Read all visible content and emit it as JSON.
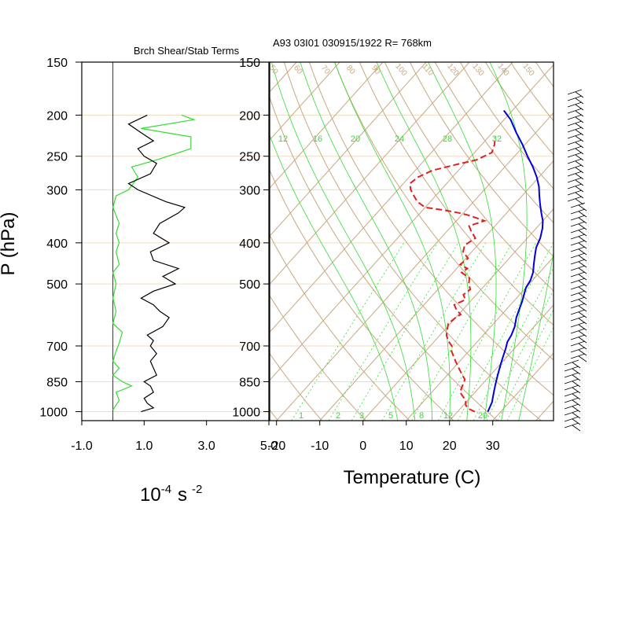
{
  "colors": {
    "isobar": "#f0dcc0",
    "adiabat": "#c8a880",
    "mixing": "#33dd33",
    "temperature": "#e02020",
    "dewpoint": "#0000dd",
    "shear": "#000000",
    "stability": "#33dd33"
  },
  "chart_data": [
    {
      "type": "line",
      "title": "Brch Shear/Stab Terms",
      "xlabel": "10",
      "xlabel_exp": "-4",
      "xlabel_unit": "s",
      "xlabel_unit_exp": "-2",
      "ylabel": "P (hPa)",
      "xlim": [
        -1.0,
        5.0
      ],
      "x_ticks": [
        "-1.0",
        "1.0",
        "3.0",
        "5.0"
      ],
      "y_ticks": [
        "150",
        "200",
        "250",
        "300",
        "400",
        "500",
        "700",
        "850",
        "1000"
      ],
      "zero_line": true,
      "series": [
        {
          "key": "shear",
          "points": [
            [
              0.9,
              1000
            ],
            [
              1.3,
              980
            ],
            [
              1.1,
              955
            ],
            [
              1.0,
              930
            ],
            [
              1.3,
              900
            ],
            [
              1.2,
              870
            ],
            [
              1.0,
              850
            ],
            [
              1.4,
              820
            ],
            [
              1.3,
              790
            ],
            [
              1.2,
              760
            ],
            [
              1.4,
              730
            ],
            [
              1.2,
              700
            ],
            [
              1.3,
              680
            ],
            [
              1.1,
              660
            ],
            [
              1.6,
              630
            ],
            [
              1.8,
              600
            ],
            [
              1.5,
              580
            ],
            [
              1.3,
              560
            ],
            [
              0.9,
              540
            ],
            [
              1.3,
              520
            ],
            [
              2.0,
              500
            ],
            [
              1.6,
              480
            ],
            [
              2.1,
              460
            ],
            [
              1.3,
              440
            ],
            [
              1.2,
              420
            ],
            [
              1.8,
              400
            ],
            [
              1.3,
              380
            ],
            [
              1.5,
              360
            ],
            [
              2.1,
              340
            ],
            [
              2.3,
              330
            ],
            [
              1.7,
              320
            ],
            [
              0.8,
              300
            ],
            [
              0.5,
              290
            ],
            [
              1.2,
              275
            ],
            [
              1.4,
              260
            ],
            [
              1.0,
              250
            ],
            [
              0.8,
              240
            ],
            [
              1.3,
              230
            ],
            [
              0.9,
              220
            ],
            [
              0.5,
              210
            ],
            [
              1.1,
              200
            ]
          ]
        },
        {
          "key": "stability",
          "points": [
            [
              0.0,
              990
            ],
            [
              0.2,
              940
            ],
            [
              0.1,
              900
            ],
            [
              0.6,
              870
            ],
            [
              0.3,
              850
            ],
            [
              0.0,
              820
            ],
            [
              0.2,
              790
            ],
            [
              0.0,
              760
            ],
            [
              0.1,
              720
            ],
            [
              0.2,
              690
            ],
            [
              0.3,
              650
            ],
            [
              0.0,
              620
            ],
            [
              0.1,
              580
            ],
            [
              0.0,
              540
            ],
            [
              0.1,
              500
            ],
            [
              0.0,
              470
            ],
            [
              0.2,
              450
            ],
            [
              0.1,
              420
            ],
            [
              0.2,
              400
            ],
            [
              0.1,
              380
            ],
            [
              0.2,
              360
            ],
            [
              0.0,
              330
            ],
            [
              0.1,
              310
            ],
            [
              0.5,
              300
            ],
            [
              0.8,
              280
            ],
            [
              0.6,
              265
            ],
            [
              1.4,
              255
            ],
            [
              2.5,
              240
            ],
            [
              2.5,
              225
            ],
            [
              0.9,
              215
            ],
            [
              2.6,
              205
            ],
            [
              2.2,
              200
            ]
          ]
        }
      ]
    },
    {
      "type": "skew-t",
      "title": "A93 03I01 030915/1922 R= 768km",
      "xlabel": "Temperature (C)",
      "ylim": [
        1000,
        150
      ],
      "x_ticks": [
        "-20",
        "-10",
        "0",
        "10",
        "20",
        "30"
      ],
      "y_ticks": [
        "150",
        "200",
        "250",
        "300",
        "400",
        "500",
        "700",
        "850",
        "1000"
      ],
      "mixing_ratio_labels_top": [
        "12",
        "16",
        "20",
        "24",
        "28",
        "32"
      ],
      "mixing_ratio_labels_bottom": [
        "1",
        "2",
        "3",
        "5",
        "8",
        "12",
        "20"
      ],
      "theta_labels": [
        "50",
        "60",
        "70",
        "80",
        "90",
        "100",
        "110",
        "120",
        "130",
        "140",
        "150"
      ],
      "series": [
        {
          "key": "temperature_profile",
          "points": [
            [
              24.0,
              1000
            ],
            [
              22.0,
              985
            ],
            [
              20.5,
              965
            ],
            [
              19.5,
              940
            ],
            [
              18.0,
              920
            ],
            [
              16.5,
              900
            ],
            [
              16.0,
              880
            ],
            [
              15.5,
              860
            ],
            [
              15.0,
              840
            ],
            [
              13.5,
              820
            ],
            [
              12.0,
              800
            ],
            [
              10.5,
              780
            ],
            [
              9.0,
              760
            ],
            [
              7.5,
              740
            ],
            [
              6.0,
              720
            ],
            [
              5.0,
              700
            ],
            [
              3.0,
              680
            ],
            [
              1.5,
              660
            ],
            [
              0.5,
              640
            ],
            [
              -0.5,
              620
            ],
            [
              0.0,
              600
            ],
            [
              0.5,
              590
            ],
            [
              -1.5,
              575
            ],
            [
              -3.0,
              560
            ],
            [
              -1.5,
              545
            ],
            [
              -3.0,
              530
            ],
            [
              -2.5,
              515
            ],
            [
              -4.0,
              500
            ],
            [
              -5.0,
              485
            ],
            [
              -8.0,
              470
            ],
            [
              -7.5,
              460
            ],
            [
              -10.0,
              450
            ],
            [
              -9.5,
              435
            ],
            [
              -12.0,
              420
            ],
            [
              -13.0,
              405
            ],
            [
              -12.0,
              390
            ],
            [
              -14.5,
              375
            ],
            [
              -16.0,
              365
            ],
            [
              -13.5,
              355
            ],
            [
              -18.0,
              345
            ],
            [
              -21.0,
              340
            ],
            [
              -25.0,
              335
            ],
            [
              -30.0,
              330
            ],
            [
              -33.0,
              320
            ],
            [
              -35.0,
              310
            ],
            [
              -37.0,
              300
            ],
            [
              -38.5,
              290
            ],
            [
              -38.0,
              280
            ],
            [
              -36.0,
              270
            ],
            [
              -32.0,
              262
            ],
            [
              -28.0,
              255
            ],
            [
              -26.0,
              245
            ],
            [
              -27.0,
              235
            ],
            [
              -28.5,
              225
            ]
          ]
        },
        {
          "key": "dewpoint_profile",
          "points": [
            [
              27.0,
              1000
            ],
            [
              26.5,
              975
            ],
            [
              26.0,
              950
            ],
            [
              25.0,
              920
            ],
            [
              24.0,
              890
            ],
            [
              23.0,
              860
            ],
            [
              22.0,
              830
            ],
            [
              21.0,
              800
            ],
            [
              20.0,
              770
            ],
            [
              19.0,
              740
            ],
            [
              18.0,
              710
            ],
            [
              17.0,
              685
            ],
            [
              16.5,
              660
            ],
            [
              15.5,
              630
            ],
            [
              14.0,
              600
            ],
            [
              13.0,
              575
            ],
            [
              12.0,
              550
            ],
            [
              11.0,
              530
            ],
            [
              10.0,
              510
            ],
            [
              9.5,
              490
            ],
            [
              8.5,
              470
            ],
            [
              7.0,
              450
            ],
            [
              5.5,
              430
            ],
            [
              4.0,
              410
            ],
            [
              3.0,
              390
            ],
            [
              1.5,
              370
            ],
            [
              0.0,
              355
            ],
            [
              -2.0,
              340
            ],
            [
              -4.0,
              325
            ],
            [
              -6.0,
              310
            ],
            [
              -8.0,
              295
            ],
            [
              -10.5,
              280
            ],
            [
              -13.5,
              265
            ],
            [
              -17.0,
              250
            ],
            [
              -20.5,
              235
            ],
            [
              -24.5,
              220
            ],
            [
              -28.5,
              205
            ],
            [
              -32.0,
              195
            ]
          ]
        }
      ]
    }
  ]
}
